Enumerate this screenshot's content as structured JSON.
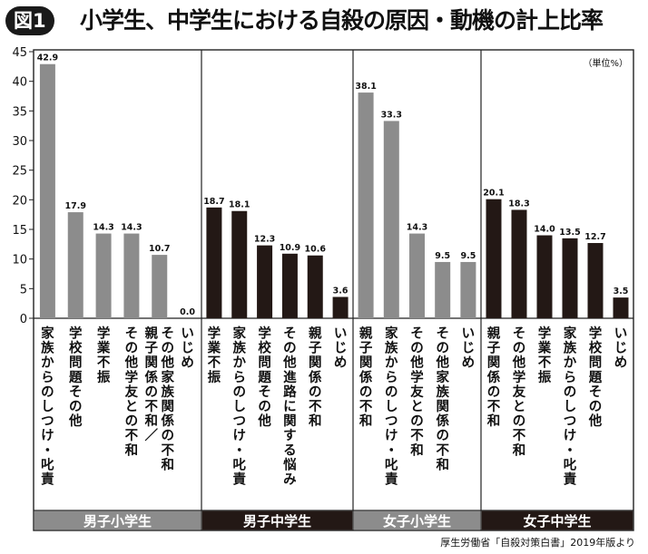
{
  "figure_label": "図1",
  "title": "小学生、中学生における自殺の原因・動機の計上比率",
  "unit": "（単位%）",
  "source": "厚生労働省「自殺対策白書」2019年版より",
  "colors": {
    "gray": "#8c8c8c",
    "black": "#231815",
    "frame": "#222222"
  },
  "chart_data": {
    "type": "bar",
    "title": "小学生、中学生における自殺の原因・動機の計上比率",
    "ylabel": "（単位%）",
    "ylim": [
      0,
      45
    ],
    "yticks": [
      0,
      5,
      10,
      15,
      20,
      25,
      30,
      35,
      40,
      45
    ],
    "grid": false,
    "groups": [
      {
        "name": "男子小学生",
        "color": "#8c8c8c",
        "categories": [
          "家族からのしつけ・叱責",
          "学校問題その他",
          "学業不振",
          "その他学友との不和",
          "親子関係の不和／その他家族関係の不和",
          "いじめ"
        ],
        "values": [
          42.9,
          17.9,
          14.3,
          14.3,
          10.7,
          0.0
        ]
      },
      {
        "name": "男子中学生",
        "color": "#231815",
        "categories": [
          "学業不振",
          "家族からのしつけ・叱責",
          "学校問題その他",
          "その他進路に関する悩み",
          "親子関係の不和",
          "いじめ"
        ],
        "values": [
          18.7,
          18.1,
          12.3,
          10.9,
          10.6,
          3.6
        ]
      },
      {
        "name": "女子小学生",
        "color": "#8c8c8c",
        "categories": [
          "親子関係の不和",
          "家族からのしつけ・叱責",
          "その他学友との不和",
          "その他家族関係の不和",
          "いじめ"
        ],
        "values": [
          38.1,
          33.3,
          14.3,
          9.5,
          9.5
        ]
      },
      {
        "name": "女子中学生",
        "color": "#231815",
        "categories": [
          "親子関係の不和",
          "その他学友との不和",
          "学業不振",
          "家族からのしつけ・叱責",
          "学校問題その他",
          "いじめ"
        ],
        "values": [
          20.1,
          18.3,
          14.0,
          13.5,
          12.7,
          3.5
        ]
      }
    ]
  }
}
